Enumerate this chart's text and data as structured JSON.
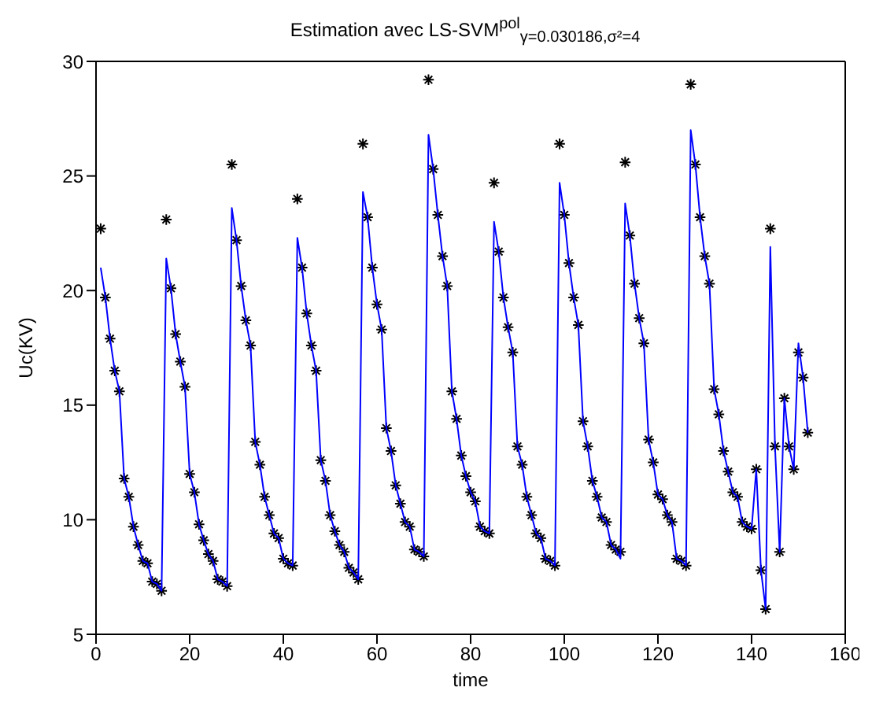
{
  "chart_data": {
    "type": "line",
    "title": "Estimation avec LS-SVM$^{pol}$$_{γ=0.030186,σ²=4}$",
    "xlabel": "time",
    "ylabel": "Uc(KV)",
    "x": [
      1,
      2,
      3,
      4,
      5,
      6,
      7,
      8,
      9,
      10,
      11,
      12,
      13,
      14,
      15,
      16,
      17,
      18,
      19,
      20,
      21,
      22,
      23,
      24,
      25,
      26,
      27,
      28,
      29,
      30,
      31,
      32,
      33,
      34,
      35,
      36,
      37,
      38,
      39,
      40,
      41,
      42,
      43,
      44,
      45,
      46,
      47,
      48,
      49,
      50,
      51,
      52,
      53,
      54,
      55,
      56,
      57,
      58,
      59,
      60,
      61,
      62,
      63,
      64,
      65,
      66,
      67,
      68,
      69,
      70,
      71,
      72,
      73,
      74,
      75,
      76,
      77,
      78,
      79,
      80,
      81,
      82,
      83,
      84,
      85,
      86,
      87,
      88,
      89,
      90,
      91,
      92,
      93,
      94,
      95,
      96,
      97,
      98,
      99,
      100,
      101,
      102,
      103,
      104,
      105,
      106,
      107,
      108,
      109,
      110,
      111,
      112,
      113,
      114,
      115,
      116,
      117,
      118,
      119,
      120,
      121,
      122,
      123,
      124,
      125,
      126,
      127,
      128,
      129,
      130,
      131,
      132,
      133,
      134,
      135,
      136,
      137,
      138,
      139,
      140,
      141,
      142,
      143,
      144,
      145,
      146,
      147,
      148,
      149,
      150,
      151,
      152
    ],
    "xlim": [
      0,
      160
    ],
    "xticks": [
      0,
      20,
      40,
      60,
      80,
      100,
      120,
      140,
      160
    ],
    "ylim": [
      5,
      30
    ],
    "yticks": [
      5,
      10,
      15,
      20,
      25,
      30
    ],
    "series": [
      {
        "color": "#0000ff",
        "marker": "none",
        "line_style": "solid",
        "values": [
          21.0,
          19.7,
          17.9,
          16.5,
          15.6,
          11.8,
          11.0,
          9.7,
          8.9,
          8.2,
          8.1,
          7.3,
          7.2,
          6.9,
          21.4,
          20.1,
          18.1,
          16.9,
          15.8,
          12.0,
          11.2,
          9.8,
          9.1,
          8.5,
          8.2,
          7.4,
          7.3,
          7.1,
          23.6,
          22.2,
          20.2,
          18.7,
          17.6,
          13.4,
          12.4,
          11.0,
          10.2,
          9.4,
          9.2,
          8.3,
          8.1,
          8.0,
          22.3,
          21.0,
          19.0,
          17.6,
          16.5,
          12.6,
          11.7,
          10.2,
          9.5,
          8.9,
          8.6,
          7.9,
          7.7,
          7.4,
          24.3,
          23.2,
          21.0,
          19.4,
          18.3,
          14.0,
          13.0,
          11.5,
          10.7,
          9.9,
          9.7,
          8.7,
          8.6,
          8.4,
          26.8,
          25.3,
          23.3,
          21.5,
          20.2,
          15.6,
          14.4,
          12.8,
          11.9,
          11.2,
          10.8,
          9.7,
          9.5,
          9.4,
          23.0,
          21.7,
          19.7,
          18.4,
          17.3,
          13.2,
          12.4,
          11.0,
          10.2,
          9.4,
          9.2,
          8.3,
          8.2,
          8.0,
          24.7,
          23.3,
          21.2,
          19.7,
          18.5,
          14.3,
          13.2,
          11.7,
          11.0,
          10.1,
          9.9,
          8.9,
          8.7,
          8.3,
          23.8,
          22.4,
          20.3,
          18.8,
          17.7,
          13.5,
          12.5,
          11.1,
          10.9,
          10.2,
          9.9,
          8.3,
          8.2,
          8.0,
          27.0,
          25.5,
          23.2,
          21.5,
          20.3,
          15.7,
          14.6,
          13.0,
          12.1,
          11.2,
          11.0,
          9.9,
          9.7,
          9.6,
          12.2,
          7.8,
          6.1,
          21.9,
          13.2,
          8.6,
          15.3,
          13.2,
          12.2,
          17.7,
          16.2,
          13.8
        ]
      },
      {
        "type": "scatter",
        "color": "#000000",
        "marker": "cross",
        "values": [
          22.7,
          19.7,
          17.9,
          16.5,
          15.6,
          11.8,
          11.0,
          9.7,
          8.9,
          8.2,
          8.1,
          7.3,
          7.2,
          6.9,
          23.1,
          20.1,
          18.1,
          16.9,
          15.8,
          12.0,
          11.2,
          9.8,
          9.1,
          8.5,
          8.2,
          7.4,
          7.3,
          7.1,
          25.5,
          22.2,
          20.2,
          18.7,
          17.6,
          13.4,
          12.4,
          11.0,
          10.2,
          9.4,
          9.2,
          8.3,
          8.1,
          8.0,
          24.0,
          21.0,
          19.0,
          17.6,
          16.5,
          12.6,
          11.7,
          10.2,
          9.5,
          8.9,
          8.6,
          7.9,
          7.7,
          7.4,
          26.4,
          23.2,
          21.0,
          19.4,
          18.3,
          14.0,
          13.0,
          11.5,
          10.7,
          9.9,
          9.7,
          8.7,
          8.6,
          8.4,
          29.2,
          25.3,
          23.3,
          21.5,
          20.2,
          15.6,
          14.4,
          12.8,
          11.9,
          11.2,
          10.8,
          9.7,
          9.5,
          9.4,
          24.7,
          21.7,
          19.7,
          18.4,
          17.3,
          13.2,
          12.4,
          11.0,
          10.2,
          9.4,
          9.2,
          8.3,
          8.2,
          8.0,
          26.4,
          23.3,
          21.2,
          19.7,
          18.5,
          14.3,
          13.2,
          11.7,
          11.0,
          10.1,
          9.9,
          8.9,
          8.7,
          8.6,
          25.6,
          22.4,
          20.3,
          18.8,
          17.7,
          13.5,
          12.5,
          11.1,
          10.9,
          10.2,
          9.9,
          8.3,
          8.2,
          8.0,
          29.0,
          25.5,
          23.2,
          21.5,
          20.3,
          15.7,
          14.6,
          13.0,
          12.1,
          11.2,
          11.0,
          9.9,
          9.7,
          9.6,
          12.2,
          7.8,
          6.1,
          22.7,
          13.2,
          8.6,
          15.3,
          13.2,
          12.2,
          17.3,
          16.2,
          13.8
        ]
      }
    ]
  }
}
